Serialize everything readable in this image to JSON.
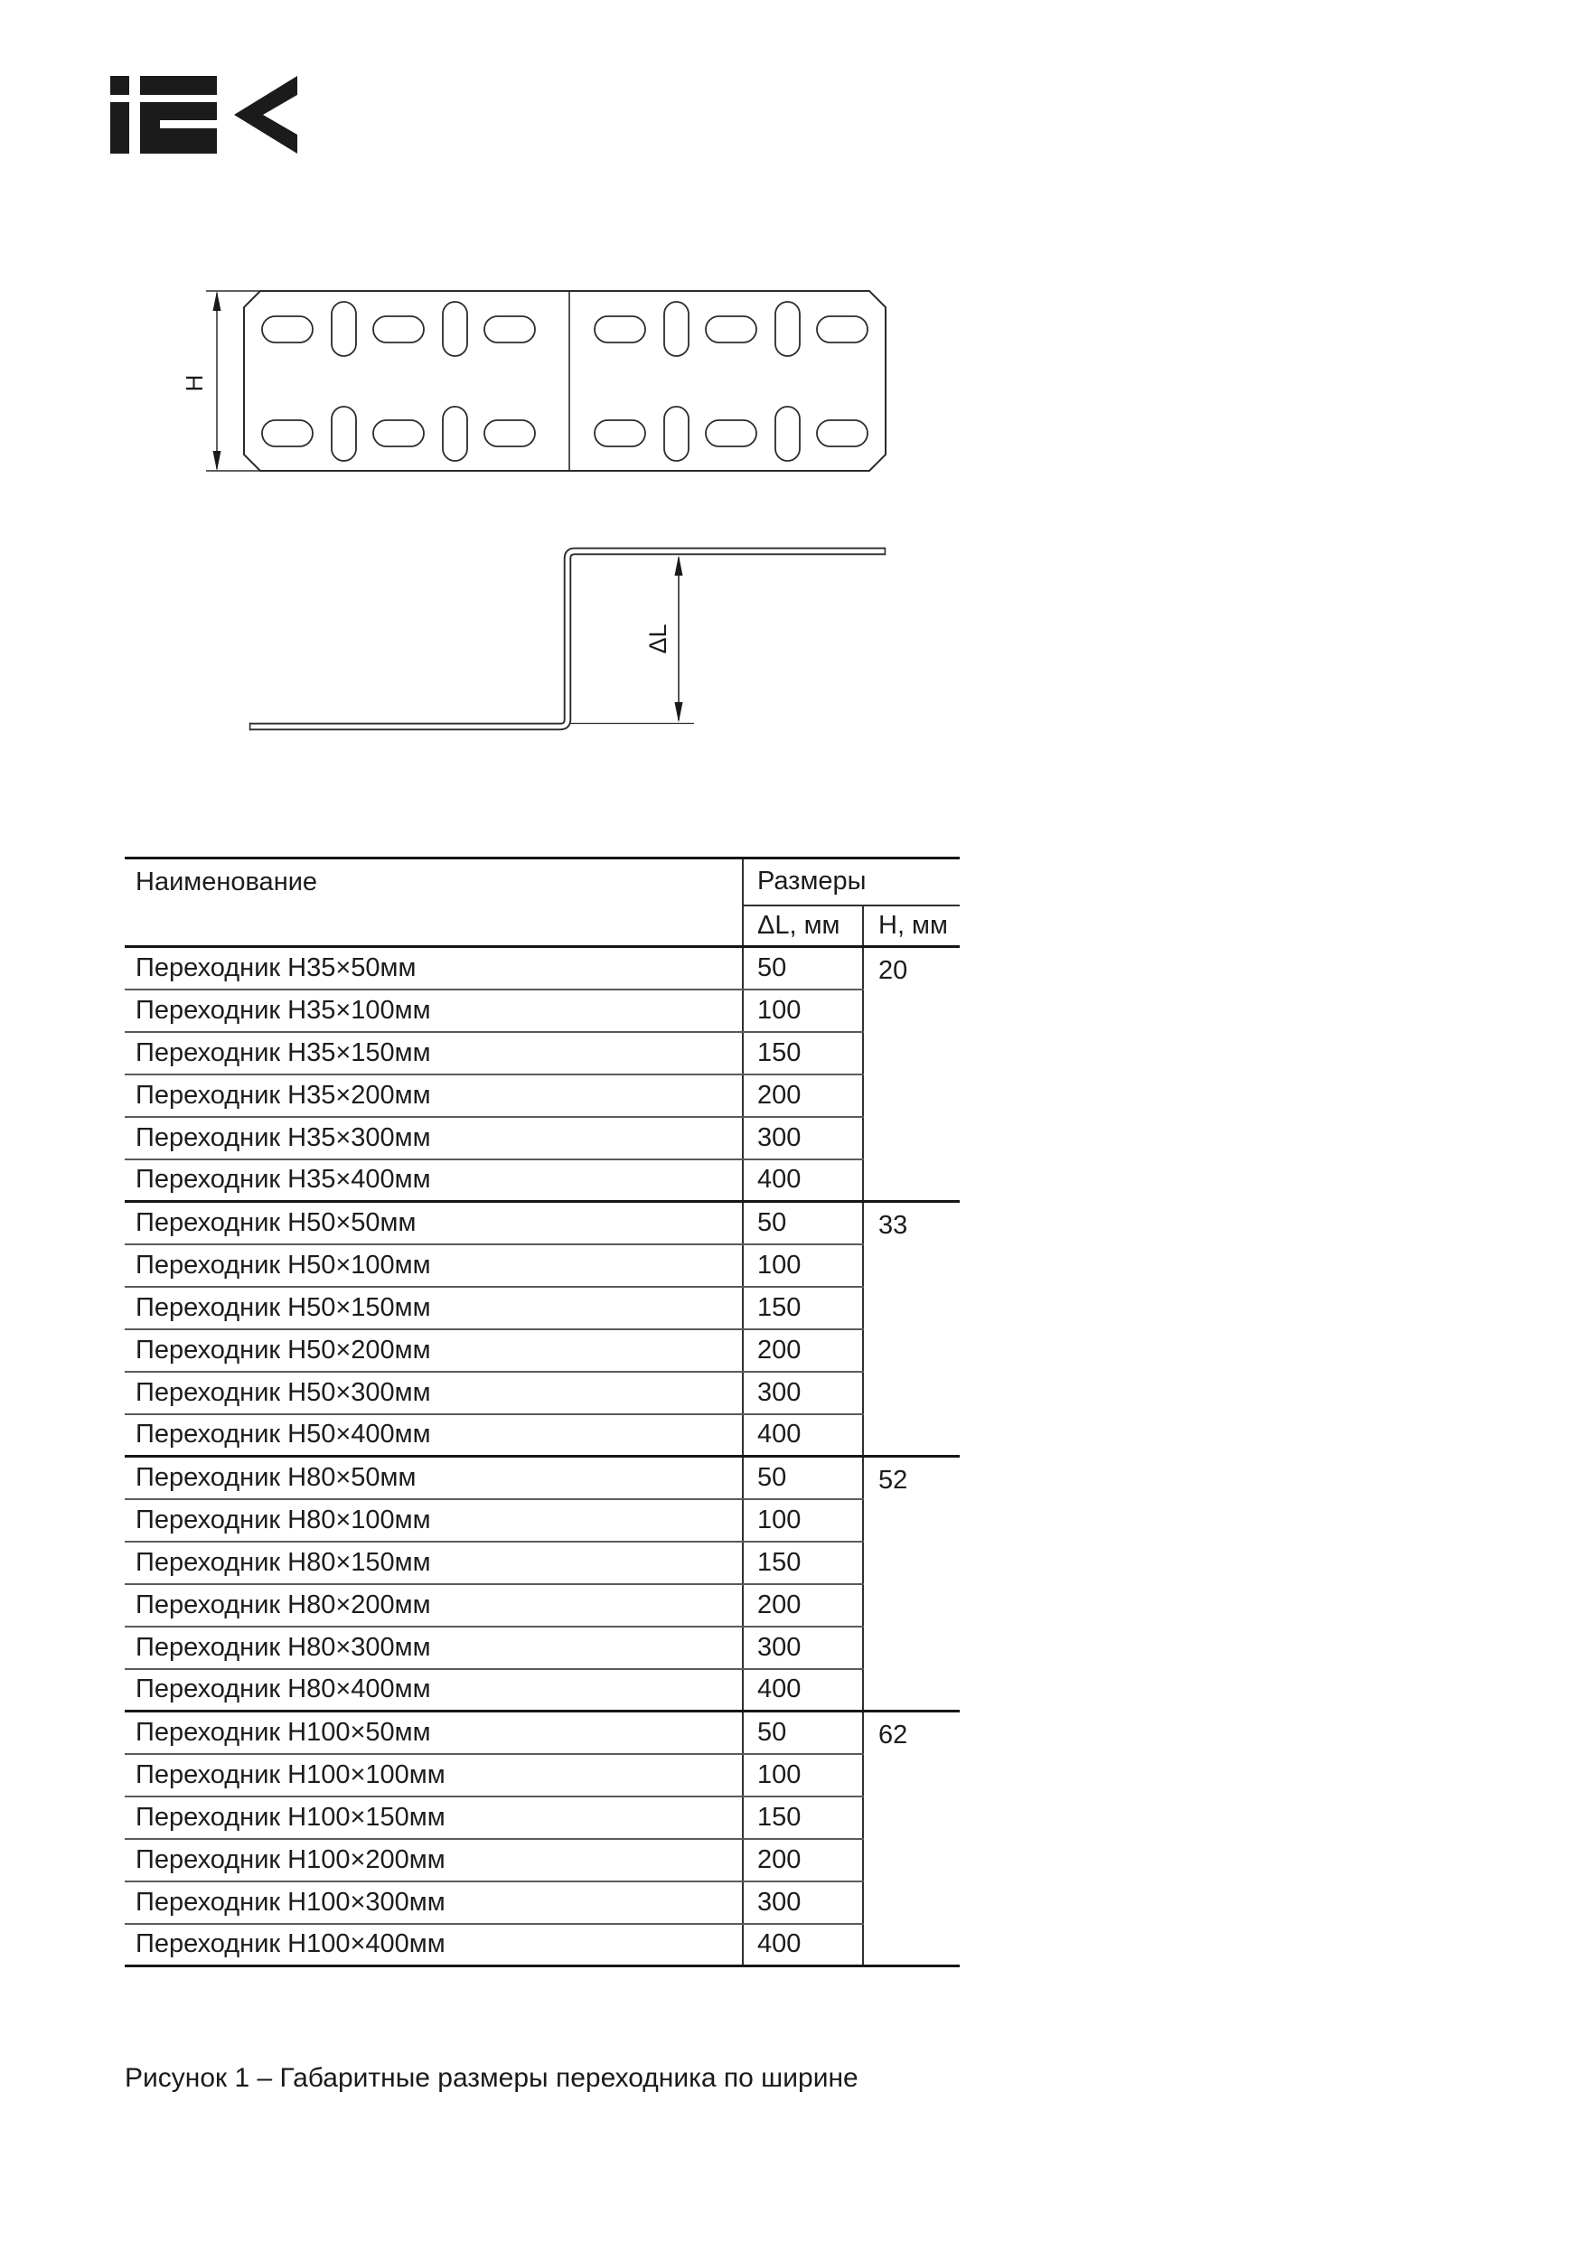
{
  "logo": {
    "brand": "IEK"
  },
  "figure_top_view": {
    "dim_label": "H"
  },
  "figure_side_view": {
    "dim_label": "ΔL"
  },
  "table": {
    "col_name_header": "Наименование",
    "col_sizes_header": "Размеры",
    "sub_header_dl": "ΔL, мм",
    "sub_header_h": "H, мм",
    "groups": [
      {
        "h": "20",
        "rows": [
          {
            "name": "Переходник H35×50мм",
            "dl": "50"
          },
          {
            "name": "Переходник H35×100мм",
            "dl": "100"
          },
          {
            "name": "Переходник H35×150мм",
            "dl": "150"
          },
          {
            "name": "Переходник H35×200мм",
            "dl": "200"
          },
          {
            "name": "Переходник H35×300мм",
            "dl": "300"
          },
          {
            "name": "Переходник H35×400мм",
            "dl": "400"
          }
        ]
      },
      {
        "h": "33",
        "rows": [
          {
            "name": "Переходник H50×50мм",
            "dl": "50"
          },
          {
            "name": "Переходник H50×100мм",
            "dl": "100"
          },
          {
            "name": "Переходник H50×150мм",
            "dl": "150"
          },
          {
            "name": "Переходник H50×200мм",
            "dl": "200"
          },
          {
            "name": "Переходник H50×300мм",
            "dl": "300"
          },
          {
            "name": "Переходник H50×400мм",
            "dl": "400"
          }
        ]
      },
      {
        "h": "52",
        "rows": [
          {
            "name": "Переходник H80×50мм",
            "dl": "50"
          },
          {
            "name": "Переходник H80×100мм",
            "dl": "100"
          },
          {
            "name": "Переходник H80×150мм",
            "dl": "150"
          },
          {
            "name": "Переходник H80×200мм",
            "dl": "200"
          },
          {
            "name": "Переходник H80×300мм",
            "dl": "300"
          },
          {
            "name": "Переходник H80×400мм",
            "dl": "400"
          }
        ]
      },
      {
        "h": "62",
        "rows": [
          {
            "name": "Переходник H100×50мм",
            "dl": "50"
          },
          {
            "name": "Переходник H100×100мм",
            "dl": "100"
          },
          {
            "name": "Переходник H100×150мм",
            "dl": "150"
          },
          {
            "name": "Переходник H100×200мм",
            "dl": "200"
          },
          {
            "name": "Переходник H100×300мм",
            "dl": "300"
          },
          {
            "name": "Переходник H100×400мм",
            "dl": "400"
          }
        ]
      }
    ]
  },
  "caption": "Рисунок 1 – Габаритные размеры переходника по ширине"
}
